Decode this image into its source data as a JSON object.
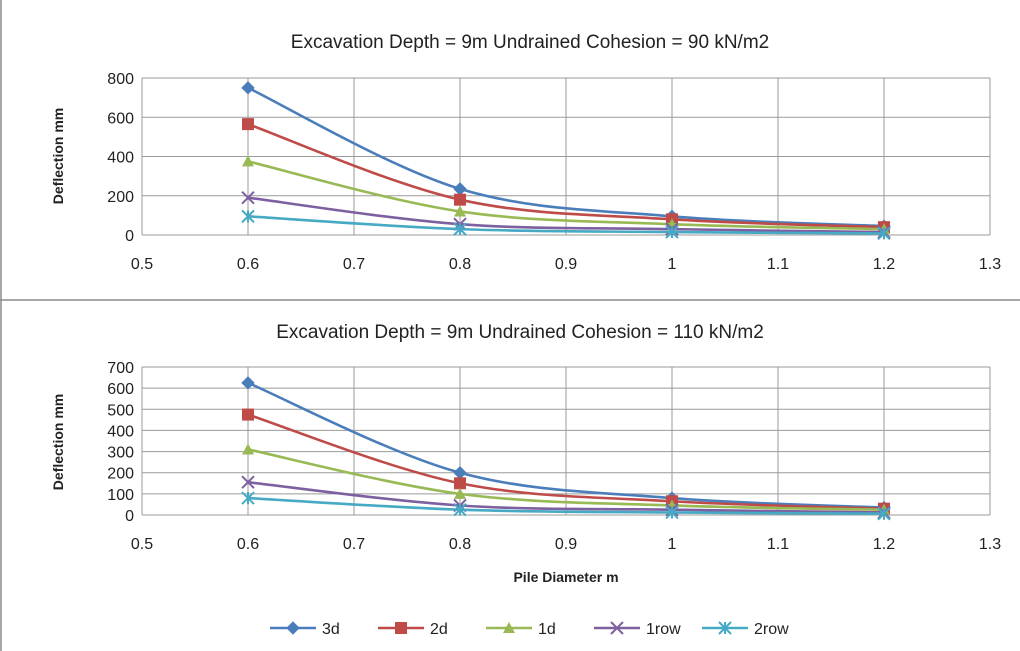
{
  "chart_data": [
    {
      "type": "line",
      "title": "Excavation Depth = 9m Undrained Cohesion = 90 kN/m2",
      "xlabel": "",
      "ylabel": "Deflection mm",
      "xlim": [
        0.5,
        1.3
      ],
      "ylim": [
        0,
        800
      ],
      "xticks": [
        0.5,
        0.6,
        0.7,
        0.8,
        0.9,
        1,
        1.1,
        1.2,
        1.3
      ],
      "xtick_labels": [
        "0.5",
        "0.6",
        "0.7",
        "0.8",
        "0.9",
        "1",
        "1.1",
        "1.2",
        "1.3"
      ],
      "yticks": [
        0,
        200,
        400,
        600,
        800
      ],
      "ytick_labels": [
        "0",
        "200",
        "400",
        "600",
        "800"
      ],
      "grid": true,
      "x": [
        0.6,
        0.8,
        1.0,
        1.2
      ],
      "series": [
        {
          "name": "3d",
          "values": [
            750,
            235,
            95,
            45
          ]
        },
        {
          "name": "2d",
          "values": [
            565,
            180,
            80,
            40
          ]
        },
        {
          "name": "1d",
          "values": [
            375,
            120,
            55,
            30
          ]
        },
        {
          "name": "1row",
          "values": [
            190,
            55,
            30,
            15
          ]
        },
        {
          "name": "2row",
          "values": [
            95,
            30,
            15,
            8
          ]
        }
      ]
    },
    {
      "type": "line",
      "title": "Excavation Depth = 9m Undrained Cohesion = 110 kN/m2",
      "xlabel": "Pile Diameter m",
      "ylabel": "Deflection mm",
      "xlim": [
        0.5,
        1.3
      ],
      "ylim": [
        0,
        700
      ],
      "xticks": [
        0.5,
        0.6,
        0.7,
        0.8,
        0.9,
        1,
        1.1,
        1.2,
        1.3
      ],
      "xtick_labels": [
        "0.5",
        "0.6",
        "0.7",
        "0.8",
        "0.9",
        "1",
        "1.1",
        "1.2",
        "1.3"
      ],
      "yticks": [
        0,
        100,
        200,
        300,
        400,
        500,
        600,
        700
      ],
      "ytick_labels": [
        "0",
        "100",
        "200",
        "300",
        "400",
        "500",
        "600",
        "700"
      ],
      "grid": true,
      "x": [
        0.6,
        0.8,
        1.0,
        1.2
      ],
      "series": [
        {
          "name": "3d",
          "values": [
            625,
            200,
            80,
            35
          ]
        },
        {
          "name": "2d",
          "values": [
            475,
            150,
            65,
            30
          ]
        },
        {
          "name": "1d",
          "values": [
            310,
            100,
            45,
            25
          ]
        },
        {
          "name": "1row",
          "values": [
            155,
            45,
            25,
            12
          ]
        },
        {
          "name": "2row",
          "values": [
            80,
            25,
            12,
            6
          ]
        }
      ]
    }
  ],
  "legend": {
    "position": "bottom",
    "entries": [
      "3d",
      "2d",
      "1d",
      "1row",
      "2row"
    ]
  },
  "colors": {
    "3d": "#4a7ebb",
    "2d": "#be4b48",
    "1d": "#98b954",
    "1row": "#7d60a0",
    "2row": "#46aac5",
    "grid": "#9a9a9a",
    "divider": "#8c8c8c"
  },
  "markers": {
    "3d": "diamond",
    "2d": "square",
    "1d": "triangle",
    "1row": "x-cross",
    "2row": "star"
  }
}
